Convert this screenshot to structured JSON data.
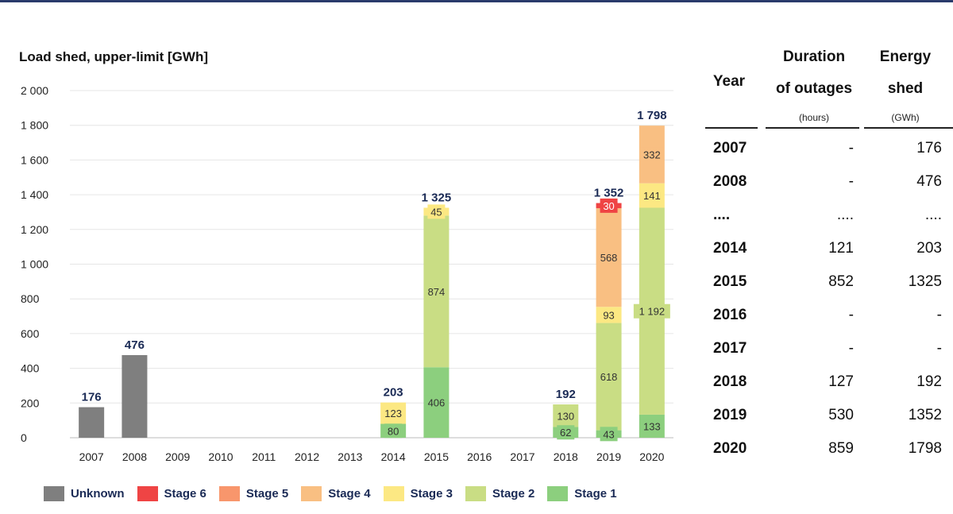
{
  "chart_data": {
    "type": "bar",
    "stacked": true,
    "title": "Load shed, upper-limit [GWh]",
    "ylim": [
      0,
      2000
    ],
    "yticks": [
      0,
      200,
      400,
      600,
      800,
      1000,
      1200,
      1400,
      1600,
      1800,
      2000
    ],
    "ytick_labels": [
      "0",
      "200",
      "400",
      "600",
      "800",
      "1 000",
      "1 200",
      "1 400",
      "1 600",
      "1 800",
      "2 000"
    ],
    "categories": [
      "2007",
      "2008",
      "2009",
      "2010",
      "2011",
      "2012",
      "2013",
      "2014",
      "2015",
      "2016",
      "2017",
      "2018",
      "2019",
      "2020"
    ],
    "series": [
      {
        "name": "Unknown",
        "color": "#7f7f7f",
        "values": [
          176,
          476,
          0,
          0,
          0,
          0,
          0,
          0,
          0,
          0,
          0,
          0,
          0,
          0
        ]
      },
      {
        "name": "Stage 1",
        "color": "#8ccf7e",
        "values": [
          0,
          0,
          0,
          0,
          0,
          0,
          0,
          80,
          406,
          0,
          0,
          62,
          43,
          133
        ]
      },
      {
        "name": "Stage 2",
        "color": "#c9dd84",
        "values": [
          0,
          0,
          0,
          0,
          0,
          0,
          0,
          0,
          874,
          0,
          0,
          130,
          618,
          1192
        ]
      },
      {
        "name": "Stage 3",
        "color": "#fce883",
        "values": [
          0,
          0,
          0,
          0,
          0,
          0,
          0,
          123,
          45,
          0,
          0,
          0,
          93,
          141
        ]
      },
      {
        "name": "Stage 4",
        "color": "#f9bf82",
        "values": [
          0,
          0,
          0,
          0,
          0,
          0,
          0,
          0,
          0,
          0,
          0,
          0,
          568,
          332
        ]
      },
      {
        "name": "Stage 5",
        "color": "#f8966c",
        "values": [
          0,
          0,
          0,
          0,
          0,
          0,
          0,
          0,
          0,
          0,
          0,
          0,
          0,
          0
        ]
      },
      {
        "name": "Stage 6",
        "color": "#ef4444",
        "values": [
          0,
          0,
          0,
          0,
          0,
          0,
          0,
          0,
          0,
          0,
          0,
          0,
          30,
          0
        ]
      }
    ],
    "segment_labels": [
      {
        "cat": "2014",
        "series": "Stage 1",
        "label": "80"
      },
      {
        "cat": "2014",
        "series": "Stage 3",
        "label": "123"
      },
      {
        "cat": "2015",
        "series": "Stage 1",
        "label": "406"
      },
      {
        "cat": "2015",
        "series": "Stage 2",
        "label": "874"
      },
      {
        "cat": "2015",
        "series": "Stage 3",
        "label": "45"
      },
      {
        "cat": "2018",
        "series": "Stage 1",
        "label": "62"
      },
      {
        "cat": "2018",
        "series": "Stage 2",
        "label": "130"
      },
      {
        "cat": "2019",
        "series": "Stage 1",
        "label": "43"
      },
      {
        "cat": "2019",
        "series": "Stage 2",
        "label": "618"
      },
      {
        "cat": "2019",
        "series": "Stage 3",
        "label": "93"
      },
      {
        "cat": "2019",
        "series": "Stage 4",
        "label": "568"
      },
      {
        "cat": "2019",
        "series": "Stage 6",
        "label": "30"
      },
      {
        "cat": "2020",
        "series": "Stage 1",
        "label": "133"
      },
      {
        "cat": "2020",
        "series": "Stage 2",
        "label": "1 192"
      },
      {
        "cat": "2020",
        "series": "Stage 3",
        "label": "141"
      },
      {
        "cat": "2020",
        "series": "Stage 4",
        "label": "332"
      }
    ],
    "totals": [
      {
        "cat": "2007",
        "value": 176,
        "label": "176"
      },
      {
        "cat": "2008",
        "value": 476,
        "label": "476"
      },
      {
        "cat": "2014",
        "value": 203,
        "label": "203"
      },
      {
        "cat": "2015",
        "value": 1325,
        "label": "1 325"
      },
      {
        "cat": "2018",
        "value": 192,
        "label": "192"
      },
      {
        "cat": "2019",
        "value": 1352,
        "label": "1 352"
      },
      {
        "cat": "2020",
        "value": 1798,
        "label": "1 798"
      }
    ],
    "legend": [
      "Unknown",
      "Stage 6",
      "Stage 5",
      "Stage 4",
      "Stage 3",
      "Stage 2",
      "Stage 1"
    ]
  },
  "legend_colors": {
    "Unknown": "#7f7f7f",
    "Stage 6": "#ef4444",
    "Stage 5": "#f8966c",
    "Stage 4": "#f9bf82",
    "Stage 3": "#fce883",
    "Stage 2": "#c9dd84",
    "Stage 1": "#8ccf7e"
  },
  "table": {
    "headers": {
      "year": "Year",
      "duration_1": "Duration",
      "duration_2": "of outages",
      "duration_unit": "(hours)",
      "energy_1": "Energy",
      "energy_2": "shed",
      "energy_unit": "(GWh)"
    },
    "rows": [
      {
        "year": "2007",
        "duration": "-",
        "energy": "176"
      },
      {
        "year": "2008",
        "duration": "-",
        "energy": "476"
      },
      {
        "year": "....",
        "duration": "....",
        "energy": "...."
      },
      {
        "year": "2014",
        "duration": "121",
        "energy": "203"
      },
      {
        "year": "2015",
        "duration": "852",
        "energy": "1325"
      },
      {
        "year": "2016",
        "duration": "-",
        "energy": "-"
      },
      {
        "year": "2017",
        "duration": "-",
        "energy": "-"
      },
      {
        "year": "2018",
        "duration": "127",
        "energy": "192"
      },
      {
        "year": "2019",
        "duration": "530",
        "energy": "1352"
      },
      {
        "year": "2020",
        "duration": "859",
        "energy": "1798"
      }
    ]
  }
}
